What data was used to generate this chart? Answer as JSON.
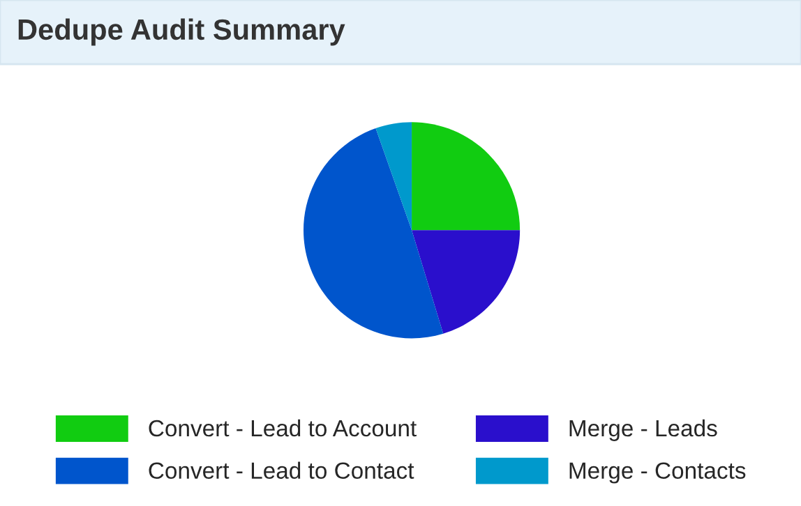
{
  "chart_data": {
    "type": "pie",
    "title": "Dedupe Audit Summary",
    "categories": [
      "Convert - Lead to Account",
      "Merge - Leads",
      "Convert - Lead to Contact",
      "Merge - Contacts"
    ],
    "values": [
      25,
      20.3,
      49.3,
      5.4
    ],
    "colors": [
      "#11cc11",
      "#2a0fcc",
      "#0055cc",
      "#0099cc"
    ],
    "legend": "bottom"
  }
}
